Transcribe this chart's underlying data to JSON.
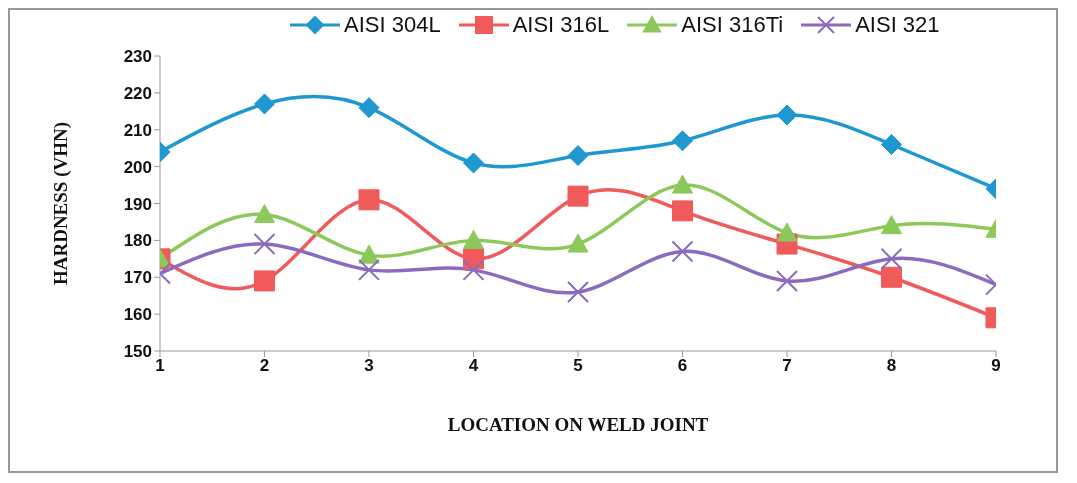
{
  "chart_data": {
    "type": "line",
    "xlabel": "LOCATION ON WELD JOINT",
    "ylabel": "HARDNESS (VHN)",
    "categories": [
      "1",
      "2",
      "3",
      "4",
      "5",
      "6",
      "7",
      "8",
      "9"
    ],
    "series": [
      {
        "name": "AISI 304L",
        "color": "#1f97d0",
        "marker": "diamond",
        "values": [
          204,
          217,
          216,
          201,
          203,
          207,
          214,
          206,
          194
        ]
      },
      {
        "name": "AISI 316L",
        "color": "#f05a5a",
        "marker": "square",
        "values": [
          175,
          169,
          191,
          175,
          192,
          188,
          179,
          170,
          159
        ]
      },
      {
        "name": "AISI 316Ti",
        "color": "#8dc85a",
        "marker": "triangle",
        "values": [
          175,
          187,
          176,
          180,
          179,
          195,
          182,
          184,
          183
        ]
      },
      {
        "name": "AISI 321",
        "color": "#8a6bbd",
        "marker": "cross",
        "values": [
          171,
          179,
          172,
          172,
          166,
          177,
          169,
          175,
          168
        ]
      }
    ],
    "ylim": [
      150,
      230
    ],
    "yticks": [
      150,
      160,
      170,
      180,
      190,
      200,
      210,
      220,
      230
    ],
    "grid": false,
    "legend": "top",
    "line_style": "solid"
  }
}
